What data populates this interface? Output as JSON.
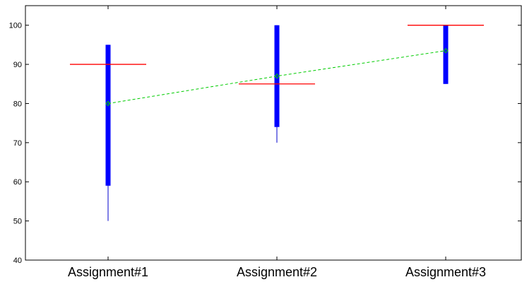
{
  "chart_data": {
    "type": "box",
    "title": "",
    "xlabel": "",
    "ylabel": "",
    "categories": [
      "Assignment#1",
      "Assignment#2",
      "Assignment#3"
    ],
    "ylim": [
      40,
      105
    ],
    "yticks": [
      40,
      50,
      60,
      70,
      80,
      90,
      100
    ],
    "grid": false,
    "legend": "none",
    "boxes": [
      {
        "whisker_low": 50,
        "box_low": 59,
        "box_high": 95,
        "whisker_high": 95,
        "reference": 90,
        "mean": 80
      },
      {
        "whisker_low": 70,
        "box_low": 74,
        "box_high": 100,
        "whisker_high": 100,
        "reference": 85,
        "mean": 87
      },
      {
        "whisker_low": 85,
        "box_low": 85,
        "box_high": 100,
        "whisker_high": 100,
        "reference": 100,
        "mean": 93.5
      }
    ],
    "colors": {
      "box": "#0000ff",
      "whisker": "#0000cc",
      "reference": "#ff0000",
      "mean_line": "#00cc00",
      "axis": "#000000"
    }
  }
}
